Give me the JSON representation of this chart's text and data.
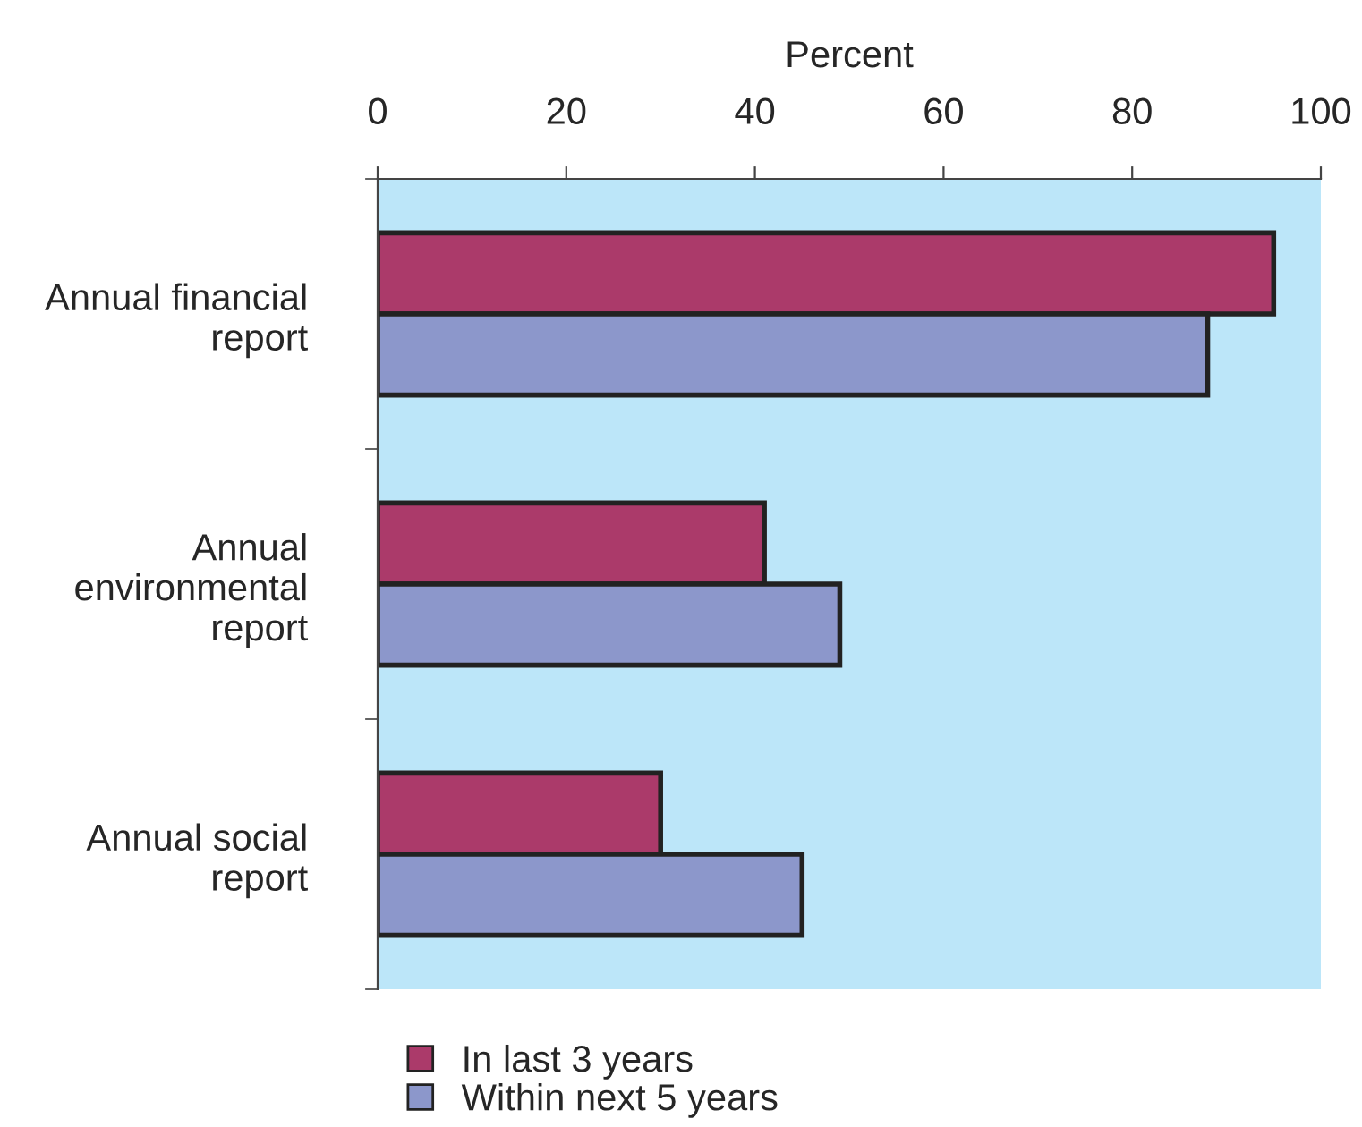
{
  "chart_data": {
    "type": "bar",
    "orientation": "horizontal",
    "xlabel": "Percent",
    "categories": [
      "Annual financial\nreport",
      "Annual\nenvironmental\nreport",
      "Annual social\nreport"
    ],
    "series": [
      {
        "name": "In last 3 years",
        "color": "#ab3a6a",
        "values": [
          95,
          41,
          30
        ]
      },
      {
        "name": "Within next 5 years",
        "color": "#8c97cb",
        "values": [
          88,
          49,
          45
        ]
      }
    ],
    "xlim": [
      0,
      100
    ],
    "xticks": [
      0,
      20,
      40,
      60,
      80,
      100
    ],
    "grid": false,
    "legend": "bottom left"
  }
}
